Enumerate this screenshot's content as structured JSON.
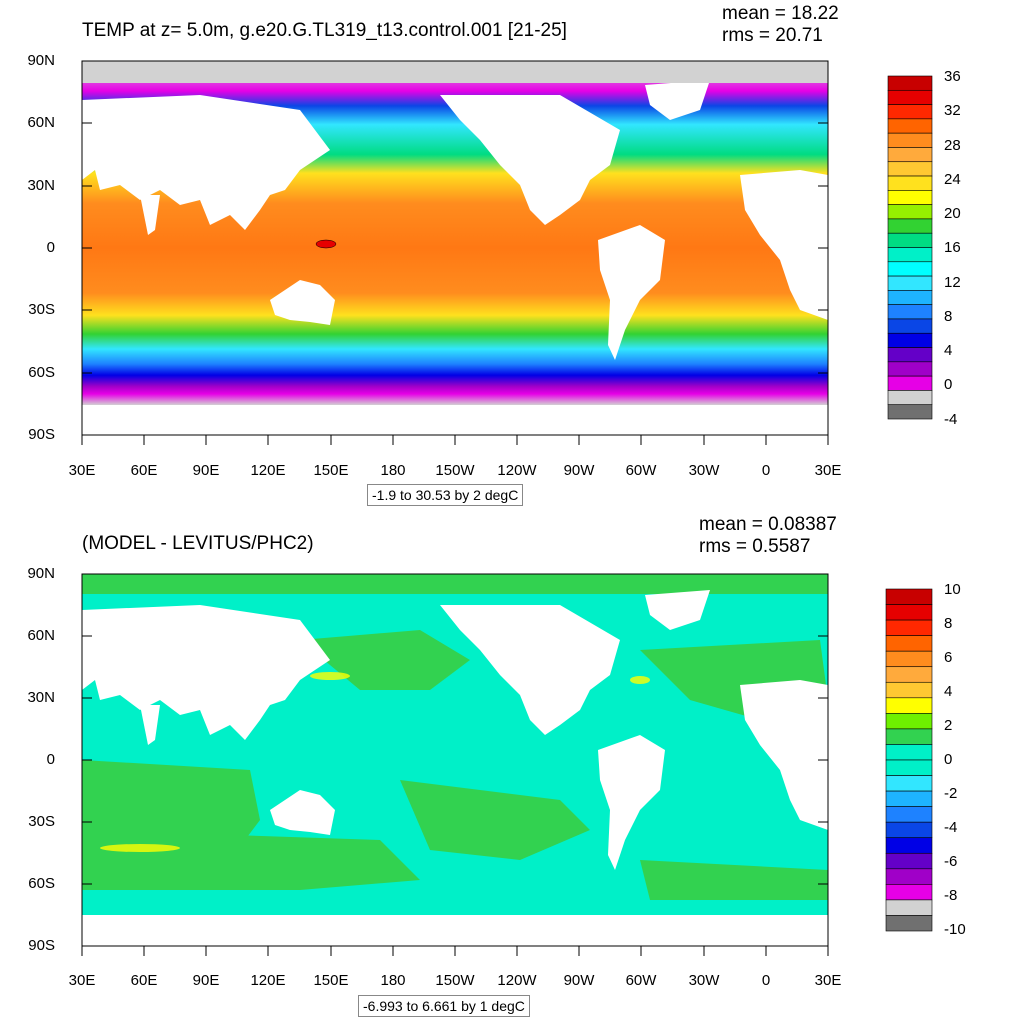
{
  "panels": [
    {
      "title": "TEMP at z=   5.0m, g.e20.G.TL319_t13.control.001 [21-25]",
      "mean": "mean = 18.22",
      "rms": "rms = 20.71",
      "range": "-1.9 to 30.53 by 2 degC",
      "y_ticks": [
        "90N",
        "60N",
        "30N",
        "0",
        "30S",
        "60S",
        "90S"
      ],
      "x_ticks": [
        "30E",
        "60E",
        "90E",
        "120E",
        "150E",
        "180",
        "150W",
        "120W",
        "90W",
        "60W",
        "30W",
        "0",
        "30E"
      ],
      "colorbar_labels": [
        "36",
        "32",
        "28",
        "24",
        "20",
        "16",
        "12",
        "8",
        "4",
        "0",
        "-4"
      ],
      "colorbar_colors": [
        "#c80000",
        "#e60000",
        "#ff2800",
        "#ff6400",
        "#ff8c1e",
        "#ffaa3c",
        "#ffc832",
        "#ffe11e",
        "#ffff00",
        "#96f000",
        "#32d232",
        "#00dc82",
        "#00f0c8",
        "#00ffff",
        "#32e6ff",
        "#1eb4ff",
        "#1e82ff",
        "#0a46e6",
        "#0000e6",
        "#6400c8",
        "#a000c8",
        "#e600e6",
        "#d2d2d2",
        "#707070"
      ]
    },
    {
      "title": "(MODEL - LEVITUS/PHC2)",
      "mean": "mean = 0.08387",
      "rms": "rms = 0.5587",
      "range": "-6.993 to 6.661 by 1 degC",
      "y_ticks": [
        "90N",
        "60N",
        "30N",
        "0",
        "30S",
        "60S",
        "90S"
      ],
      "x_ticks": [
        "30E",
        "60E",
        "90E",
        "120E",
        "150E",
        "180",
        "150W",
        "120W",
        "90W",
        "60W",
        "30W",
        "0",
        "30E"
      ],
      "colorbar_labels": [
        "10",
        "8",
        "6",
        "4",
        "2",
        "0",
        "-2",
        "-4",
        "-6",
        "-8",
        "-10"
      ],
      "colorbar_colors": [
        "#c80000",
        "#e60000",
        "#ff2800",
        "#ff6400",
        "#ff8c1e",
        "#ffaa3c",
        "#ffc832",
        "#ffff00",
        "#6ef000",
        "#32d250",
        "#00f0c8",
        "#00f0c8",
        "#32e6ff",
        "#1eb4ff",
        "#1e82ff",
        "#0a46e6",
        "#0000e6",
        "#6400c8",
        "#a000c8",
        "#e600e6",
        "#d2d2d2",
        "#707070"
      ]
    }
  ]
}
